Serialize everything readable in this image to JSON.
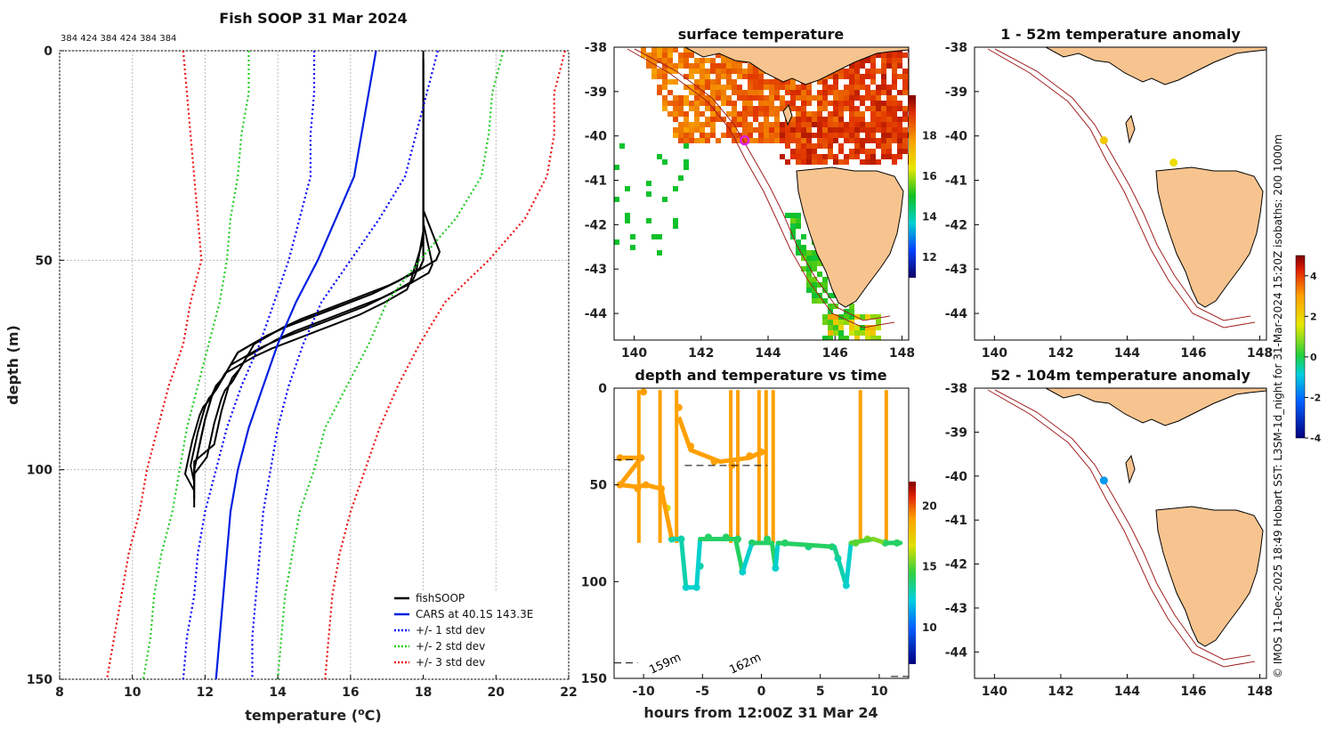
{
  "chart_data": [
    {
      "type": "line",
      "panel": "profile",
      "title": "Fish SOOP 31 Mar 2024",
      "header_note": "384 424 384 424 384 384",
      "xlabel": "temperature (",
      "xlabel_sup": "o",
      "xlabel_end": "C)",
      "ylabel": "depth (m)",
      "xlim": [
        8,
        22
      ],
      "ylim": [
        150,
        0
      ],
      "xticks": [
        "8",
        "10",
        "12",
        "14",
        "16",
        "18",
        "20",
        "22"
      ],
      "yticks": [
        "0",
        "50",
        "100",
        "150"
      ],
      "series": [
        {
          "name": "fishSOOP",
          "color": "#000000",
          "style": "solid",
          "depth": [
            2,
            20,
            40,
            50,
            52,
            55,
            58,
            60,
            62,
            64,
            66,
            68,
            70,
            72,
            75,
            78,
            80,
            82,
            85,
            88,
            92,
            96,
            100,
            104
          ],
          "temp": [
            18.0,
            18.0,
            18.0,
            18.0,
            17.9,
            17.3,
            16.6,
            16.0,
            15.4,
            14.8,
            14.2,
            13.7,
            13.3,
            12.9,
            12.7,
            12.5,
            12.3,
            12.2,
            12.1,
            12.0,
            11.9,
            11.8,
            11.7,
            11.7
          ]
        },
        {
          "name": "CARS at 40.1S 143.3E",
          "color": "#0020e0",
          "style": "solid",
          "depth": [
            0,
            10,
            20,
            30,
            40,
            50,
            60,
            70,
            80,
            90,
            100,
            110,
            120,
            130,
            140,
            150
          ],
          "temp": [
            16.7,
            16.5,
            16.3,
            16.1,
            15.6,
            15.1,
            14.5,
            14.0,
            13.6,
            13.2,
            12.9,
            12.7,
            12.6,
            12.5,
            12.4,
            12.3
          ]
        },
        {
          "name": "+/- 1 std dev",
          "color": "#0000ff",
          "style": "dotted",
          "depth": [
            0,
            10,
            20,
            30,
            40,
            50,
            60,
            70,
            80,
            90,
            100,
            110,
            120,
            130,
            140,
            150
          ],
          "low": [
            15.0,
            15.0,
            14.9,
            14.9,
            14.6,
            14.3,
            13.9,
            13.5,
            13.0,
            12.6,
            12.3,
            12.0,
            11.8,
            11.7,
            11.5,
            11.4
          ],
          "high": [
            18.4,
            18.1,
            17.8,
            17.5,
            16.8,
            16.0,
            15.2,
            14.7,
            14.3,
            14.0,
            13.8,
            13.6,
            13.5,
            13.4,
            13.3,
            13.3
          ]
        },
        {
          "name": "+/- 2 std dev",
          "color": "#22cc22",
          "style": "dotted",
          "depth": [
            0,
            10,
            20,
            30,
            40,
            50,
            60,
            70,
            80,
            90,
            100,
            110,
            120,
            130,
            140,
            150
          ],
          "low": [
            13.2,
            13.2,
            13.0,
            12.9,
            12.7,
            12.6,
            12.4,
            12.1,
            11.8,
            11.5,
            11.3,
            11.1,
            10.8,
            10.6,
            10.5,
            10.3
          ],
          "high": [
            20.2,
            19.9,
            19.8,
            19.6,
            18.9,
            17.9,
            17.0,
            16.5,
            15.9,
            15.3,
            15.0,
            14.6,
            14.4,
            14.2,
            14.1,
            14.0
          ]
        },
        {
          "name": "+/- 3 std dev",
          "color": "#ee1111",
          "style": "dotted",
          "depth": [
            0,
            10,
            20,
            30,
            40,
            50,
            60,
            70,
            80,
            90,
            100,
            110,
            120,
            130,
            140,
            150
          ],
          "low": [
            11.4,
            11.5,
            11.6,
            11.7,
            11.8,
            11.9,
            11.6,
            11.4,
            11.0,
            10.7,
            10.4,
            10.2,
            9.9,
            9.7,
            9.5,
            9.3
          ],
          "high": [
            21.9,
            21.6,
            21.6,
            21.4,
            20.8,
            19.8,
            18.6,
            17.9,
            17.3,
            16.8,
            16.4,
            16.0,
            15.7,
            15.5,
            15.4,
            15.3
          ]
        }
      ]
    },
    {
      "type": "heatmap",
      "panel": "surface",
      "title": "surface temperature",
      "xlim": [
        139.4,
        148.2
      ],
      "ylim": [
        -44.6,
        -38
      ],
      "xticks": [
        "140",
        "142",
        "144",
        "146",
        "148"
      ],
      "yticks": [
        "-38",
        "-39",
        "-40",
        "-41",
        "-42",
        "-43",
        "-44"
      ],
      "colorbar_ticks": [
        "12",
        "14",
        "16",
        "18"
      ],
      "colorbar_range": [
        11,
        20
      ],
      "marker": {
        "lon": 143.3,
        "lat": -40.1
      }
    },
    {
      "type": "scatter",
      "panel": "timeseries",
      "title": "depth and temperature vs time",
      "xlabel": "hours from 12:00Z 31 Mar 24",
      "xlim": [
        -12.5,
        12.5
      ],
      "ylim": [
        150,
        0
      ],
      "xticks": [
        "-10",
        "-5",
        "0",
        "5",
        "10"
      ],
      "yticks": [
        "0",
        "50",
        "100",
        "150"
      ],
      "colorbar_ticks": [
        "10",
        "15",
        "20"
      ],
      "colorbar_range": [
        7,
        22
      ],
      "annotations": [
        "159m",
        "162m"
      ],
      "points": [
        {
          "t": -12,
          "d": 36,
          "temp": 19
        },
        {
          "t": -10.2,
          "d": 36,
          "temp": 19
        },
        {
          "t": -12,
          "d": 50,
          "temp": 19
        },
        {
          "t": -10.5,
          "d": 52,
          "temp": 19
        },
        {
          "t": -10,
          "d": 2,
          "temp": 19
        },
        {
          "t": -9.8,
          "d": 50,
          "temp": 19
        },
        {
          "t": -8.5,
          "d": 52,
          "temp": 19
        },
        {
          "t": -8,
          "d": 62,
          "temp": 17
        },
        {
          "t": -7.6,
          "d": 78,
          "temp": 13
        },
        {
          "t": -6.8,
          "d": 78,
          "temp": 13
        },
        {
          "t": -6.4,
          "d": 103,
          "temp": 12.5
        },
        {
          "t": -5.5,
          "d": 103,
          "temp": 12.5
        },
        {
          "t": -5.2,
          "d": 92,
          "temp": 13
        },
        {
          "t": -4.5,
          "d": 77,
          "temp": 14
        },
        {
          "t": -3,
          "d": 77,
          "temp": 14
        },
        {
          "t": -2,
          "d": 78,
          "temp": 14
        },
        {
          "t": -1.6,
          "d": 95,
          "temp": 12.5
        },
        {
          "t": -0.8,
          "d": 80,
          "temp": 14
        },
        {
          "t": 0.5,
          "d": 78,
          "temp": 14
        },
        {
          "t": 1.2,
          "d": 93,
          "temp": 12.5
        },
        {
          "t": 2,
          "d": 80,
          "temp": 14
        },
        {
          "t": 4,
          "d": 82,
          "temp": 13.5
        },
        {
          "t": 6,
          "d": 82,
          "temp": 13.5
        },
        {
          "t": 6.5,
          "d": 88,
          "temp": 13
        },
        {
          "t": 7.2,
          "d": 102,
          "temp": 12.5
        },
        {
          "t": 8,
          "d": 80,
          "temp": 15
        },
        {
          "t": 9,
          "d": 78,
          "temp": 15.5
        },
        {
          "t": 10.5,
          "d": 80,
          "temp": 14
        },
        {
          "t": 11.5,
          "d": 80,
          "temp": 14
        },
        {
          "t": -7,
          "d": 10,
          "temp": 19
        },
        {
          "t": -6,
          "d": 30,
          "temp": 19
        },
        {
          "t": -4,
          "d": 38,
          "temp": 19
        },
        {
          "t": -2.5,
          "d": 40,
          "temp": 19
        },
        {
          "t": -1,
          "d": 35,
          "temp": 19
        },
        {
          "t": 0,
          "d": 33,
          "temp": 19
        }
      ],
      "verticals": [
        -10.4,
        -8.6,
        -7.2,
        -2.6,
        -2.0,
        -0.2,
        0.4,
        1.0,
        8.4,
        10.6
      ],
      "bottom_segments": [
        {
          "t0": -12.5,
          "t1": -10.5,
          "d": 37
        },
        {
          "t0": -6.5,
          "t1": 0.5,
          "d": 40
        },
        {
          "t0": -12.5,
          "t1": -10.5,
          "d": 142
        },
        {
          "t0": 11,
          "t1": 12.5,
          "d": 149
        }
      ]
    },
    {
      "type": "scatter",
      "panel": "anomaly-upper",
      "title": "1 - 52m temperature anomaly",
      "xlim": [
        139.4,
        148.2
      ],
      "ylim": [
        -44.6,
        -38
      ],
      "xticks": [
        "140",
        "142",
        "144",
        "146",
        "148"
      ],
      "yticks": [
        "-38",
        "-39",
        "-40",
        "-41",
        "-42",
        "-43",
        "-44"
      ],
      "points": [
        {
          "lon": 143.3,
          "lat": -40.1,
          "anom": 2.2
        },
        {
          "lon": 145.4,
          "lat": -40.6,
          "anom": 1.8
        }
      ]
    },
    {
      "type": "scatter",
      "panel": "anomaly-lower",
      "title": "52 - 104m temperature anomaly",
      "xlim": [
        139.4,
        148.2
      ],
      "ylim": [
        -44.6,
        -38
      ],
      "xticks": [
        "140",
        "142",
        "144",
        "146",
        "148"
      ],
      "yticks": [
        "-38",
        "-39",
        "-40",
        "-41",
        "-42",
        "-43",
        "-44"
      ],
      "points": [
        {
          "lon": 143.3,
          "lat": -40.1,
          "anom": -1.5
        }
      ]
    },
    {
      "type": "colorbar",
      "panel": "anomaly-colorbar",
      "range": [
        -4,
        5
      ],
      "ticks": [
        "-4",
        "-2",
        "0",
        "2",
        "4"
      ]
    }
  ],
  "side_caption": "© IMOS 11-Dec-2025 18:49 Hobart SST: L3SM-1d_night for 31-Mar-2024 15:20Z isobaths: 200  1000m"
}
